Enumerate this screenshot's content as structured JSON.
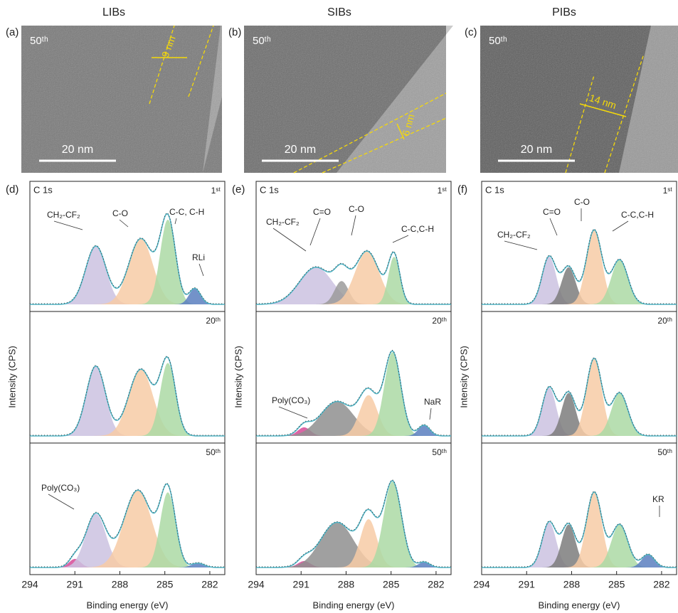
{
  "columns": [
    {
      "header": "LIBs",
      "tem": {
        "label": "(a)",
        "cycle": "50ᵗʰ",
        "thickness": "9 nm",
        "scale": "20 nm"
      },
      "xps": {
        "label": "(d)",
        "element": "C 1s",
        "xlabel": "Binding energy (eV)",
        "ylabel": "Intensity (CPS)",
        "xlim": [
          294,
          281
        ],
        "xticks": [
          294,
          291,
          288,
          285,
          282
        ],
        "spectra": [
          {
            "cycle": "1ˢᵗ",
            "annotations": [
              "CH₂-CF₂",
              "C-O",
              "C-C, C-H",
              "RLi"
            ],
            "peaks": [
              {
                "center": 289.6,
                "height": 0.55,
                "fwhm": 1.6,
                "color": "#cbc2e0"
              },
              {
                "center": 286.6,
                "height": 0.62,
                "fwhm": 1.9,
                "color": "#f7cba6"
              },
              {
                "center": 284.8,
                "height": 0.8,
                "fwhm": 1.2,
                "color": "#acd9a5"
              },
              {
                "center": 283.0,
                "height": 0.15,
                "fwhm": 0.9,
                "color": "#5a7fbf"
              }
            ]
          },
          {
            "cycle": "20ᵗʰ",
            "annotations": [],
            "peaks": [
              {
                "center": 289.6,
                "height": 0.65,
                "fwhm": 1.5,
                "color": "#cbc2e0"
              },
              {
                "center": 286.6,
                "height": 0.62,
                "fwhm": 1.9,
                "color": "#f7cba6"
              },
              {
                "center": 284.8,
                "height": 0.68,
                "fwhm": 1.2,
                "color": "#acd9a5"
              }
            ]
          },
          {
            "cycle": "50ᵗʰ",
            "annotations": [
              "Poly(CO₃)"
            ],
            "peaks": [
              {
                "center": 291.0,
                "height": 0.08,
                "fwhm": 0.9,
                "color": "#d64a96"
              },
              {
                "center": 289.6,
                "height": 0.5,
                "fwhm": 1.6,
                "color": "#cbc2e0"
              },
              {
                "center": 286.8,
                "height": 0.72,
                "fwhm": 2.2,
                "color": "#f7cba6"
              },
              {
                "center": 284.8,
                "height": 0.7,
                "fwhm": 1.2,
                "color": "#acd9a5"
              },
              {
                "center": 282.8,
                "height": 0.04,
                "fwhm": 1.0,
                "color": "#5a7fbf"
              }
            ]
          }
        ]
      }
    },
    {
      "header": "SIBs",
      "tem": {
        "label": "(b)",
        "cycle": "50ᵗʰ",
        "thickness": "6 nm",
        "scale": "20 nm"
      },
      "xps": {
        "label": "(e)",
        "element": "C 1s",
        "xlabel": "Binding energy (eV)",
        "ylabel": "Intensity (CPS)",
        "xlim": [
          294,
          281
        ],
        "xticks": [
          294,
          291,
          288,
          285,
          282
        ],
        "spectra": [
          {
            "cycle": "1ˢᵗ",
            "annotations": [
              "CH₂-CF₂",
              "C=O",
              "C-O",
              "C-C,C-H"
            ],
            "peaks": [
              {
                "center": 290.0,
                "height": 0.35,
                "fwhm": 2.6,
                "color": "#cbc2e0"
              },
              {
                "center": 288.3,
                "height": 0.22,
                "fwhm": 1.1,
                "color": "#9b9b9b"
              },
              {
                "center": 286.6,
                "height": 0.5,
                "fwhm": 1.9,
                "color": "#f7cba6"
              },
              {
                "center": 284.8,
                "height": 0.45,
                "fwhm": 0.9,
                "color": "#acd9a5"
              }
            ]
          },
          {
            "cycle": "20ᵗʰ",
            "annotations": [
              "Poly(CO₃)",
              "NaR"
            ],
            "peaks": [
              {
                "center": 290.8,
                "height": 0.08,
                "fwhm": 1.0,
                "color": "#d64a96"
              },
              {
                "center": 288.6,
                "height": 0.32,
                "fwhm": 2.6,
                "color": "#8f8f8f"
              },
              {
                "center": 286.5,
                "height": 0.38,
                "fwhm": 1.4,
                "color": "#f7cba6"
              },
              {
                "center": 284.9,
                "height": 0.78,
                "fwhm": 1.3,
                "color": "#acd9a5"
              },
              {
                "center": 282.8,
                "height": 0.1,
                "fwhm": 0.9,
                "color": "#5a7fbf"
              }
            ]
          },
          {
            "cycle": "50ᵗʰ",
            "annotations": [],
            "peaks": [
              {
                "center": 290.8,
                "height": 0.06,
                "fwhm": 1.0,
                "color": "#d64a96"
              },
              {
                "center": 288.6,
                "height": 0.42,
                "fwhm": 2.6,
                "color": "#8f8f8f"
              },
              {
                "center": 286.5,
                "height": 0.45,
                "fwhm": 1.3,
                "color": "#f7cba6"
              },
              {
                "center": 284.9,
                "height": 0.8,
                "fwhm": 1.4,
                "color": "#acd9a5"
              },
              {
                "center": 282.8,
                "height": 0.05,
                "fwhm": 0.9,
                "color": "#5a7fbf"
              }
            ]
          }
        ]
      }
    },
    {
      "header": "PIBs",
      "tem": {
        "label": "(c)",
        "cycle": "50ᵗʰ",
        "thickness": "14 nm",
        "scale": "20 nm"
      },
      "xps": {
        "label": "(f)",
        "element": "C 1s",
        "xlabel": "Binding energy (eV)",
        "ylabel": "Intensity (CPS)",
        "xlim": [
          294,
          281
        ],
        "xticks": [
          294,
          291,
          288,
          285,
          282
        ],
        "spectra": [
          {
            "cycle": "1ˢᵗ",
            "annotations": [
              "CH₂-CF₂",
              "C=O",
              "C-O",
              "C-C,C-H"
            ],
            "peaks": [
              {
                "center": 289.5,
                "height": 0.45,
                "fwhm": 1.1,
                "color": "#cbc2e0"
              },
              {
                "center": 288.2,
                "height": 0.35,
                "fwhm": 1.1,
                "color": "#7d7d7d"
              },
              {
                "center": 286.5,
                "height": 0.7,
                "fwhm": 1.2,
                "color": "#f7cba6"
              },
              {
                "center": 284.8,
                "height": 0.42,
                "fwhm": 1.3,
                "color": "#acd9a5"
              }
            ]
          },
          {
            "cycle": "20ᵗʰ",
            "annotations": [],
            "peaks": [
              {
                "center": 289.5,
                "height": 0.45,
                "fwhm": 1.1,
                "color": "#cbc2e0"
              },
              {
                "center": 288.2,
                "height": 0.4,
                "fwhm": 1.1,
                "color": "#7d7d7d"
              },
              {
                "center": 286.5,
                "height": 0.72,
                "fwhm": 1.2,
                "color": "#f7cba6"
              },
              {
                "center": 284.8,
                "height": 0.4,
                "fwhm": 1.3,
                "color": "#acd9a5"
              }
            ]
          },
          {
            "cycle": "50ᵗʰ",
            "annotations": [
              "KR"
            ],
            "peaks": [
              {
                "center": 289.5,
                "height": 0.42,
                "fwhm": 1.1,
                "color": "#cbc2e0"
              },
              {
                "center": 288.2,
                "height": 0.4,
                "fwhm": 1.1,
                "color": "#7d7d7d"
              },
              {
                "center": 286.5,
                "height": 0.7,
                "fwhm": 1.2,
                "color": "#f7cba6"
              },
              {
                "center": 284.8,
                "height": 0.4,
                "fwhm": 1.3,
                "color": "#acd9a5"
              },
              {
                "center": 282.9,
                "height": 0.12,
                "fwhm": 1.0,
                "color": "#5a7fbf"
              }
            ]
          }
        ]
      }
    }
  ]
}
